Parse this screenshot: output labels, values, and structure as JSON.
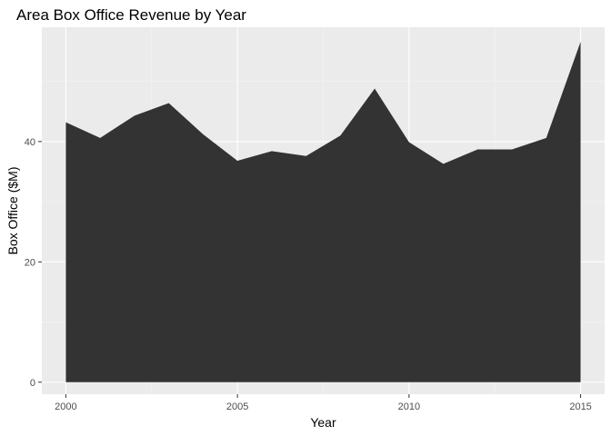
{
  "chart_data": {
    "type": "area",
    "title": "Area Box Office Revenue by Year",
    "xlabel": "Year",
    "ylabel": "Box Office ($M)",
    "x": [
      2000,
      2001,
      2002,
      2003,
      2004,
      2005,
      2006,
      2007,
      2008,
      2009,
      2010,
      2011,
      2012,
      2013,
      2014,
      2015
    ],
    "series": [
      {
        "values": [
          43.2,
          40.6,
          44.3,
          46.4,
          41.2,
          36.8,
          38.4,
          37.6,
          41.0,
          48.8,
          39.9,
          36.3,
          38.7,
          38.7,
          40.6,
          56.6
        ]
      }
    ],
    "xlim": [
      1999.3,
      2015.7
    ],
    "ylim": [
      -2.0,
      59.0
    ],
    "x_ticks": [
      2000,
      2005,
      2010,
      2015
    ],
    "x_tick_labels": [
      "2000",
      "2005",
      "2010",
      "2015"
    ],
    "y_ticks": [
      0,
      20,
      40
    ],
    "y_tick_labels": [
      "0",
      "20",
      "40"
    ],
    "grid": true,
    "legend": "none",
    "colors": {
      "fill": "#333333",
      "panel": "#ebebeb",
      "grid_major": "#ffffff",
      "grid_minor": "#f5f5f5",
      "tick": "#333333"
    }
  }
}
